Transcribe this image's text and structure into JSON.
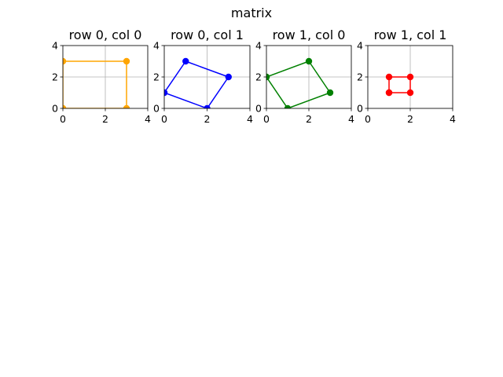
{
  "figure": {
    "title": "matrix"
  },
  "chart_data": [
    {
      "type": "line",
      "title": "row 0, col 0",
      "xlim": [
        0,
        4
      ],
      "ylim": [
        0,
        4
      ],
      "xticks": [
        0,
        2,
        4
      ],
      "yticks": [
        0,
        2,
        4
      ],
      "grid": true,
      "color": "#ffa500",
      "x": [
        0,
        3,
        3,
        0,
        0
      ],
      "y": [
        0,
        0,
        3,
        3,
        0
      ]
    },
    {
      "type": "line",
      "title": "row 0, col 1",
      "xlim": [
        0,
        4
      ],
      "ylim": [
        0,
        4
      ],
      "xticks": [
        0,
        2,
        4
      ],
      "yticks": [
        0,
        2,
        4
      ],
      "grid": true,
      "color": "#0000ff",
      "x": [
        0,
        2,
        3,
        1,
        0
      ],
      "y": [
        1,
        0,
        2,
        3,
        1
      ]
    },
    {
      "type": "line",
      "title": "row 1, col 0",
      "xlim": [
        0,
        4
      ],
      "ylim": [
        0,
        4
      ],
      "xticks": [
        0,
        2,
        4
      ],
      "yticks": [
        0,
        2,
        4
      ],
      "grid": true,
      "color": "#008000",
      "x": [
        0,
        1,
        3,
        2,
        0
      ],
      "y": [
        2,
        0,
        1,
        3,
        2
      ]
    },
    {
      "type": "line",
      "title": "row 1, col 1",
      "xlim": [
        0,
        4
      ],
      "ylim": [
        0,
        4
      ],
      "xticks": [
        0,
        2,
        4
      ],
      "yticks": [
        0,
        2,
        4
      ],
      "grid": true,
      "color": "#ff0000",
      "x": [
        1,
        2,
        2,
        1,
        1
      ],
      "y": [
        1,
        1,
        2,
        2,
        1
      ]
    }
  ]
}
